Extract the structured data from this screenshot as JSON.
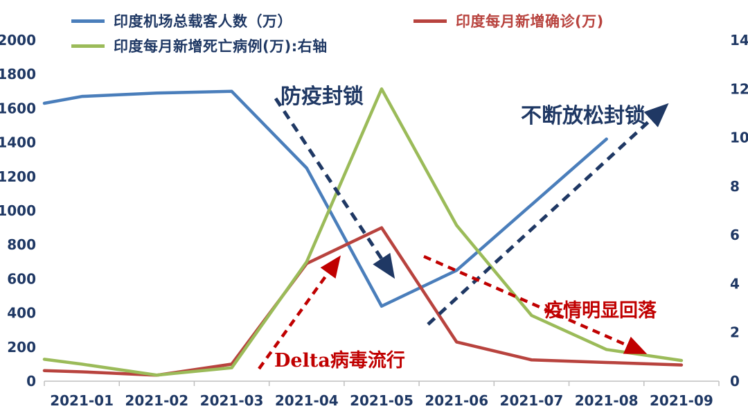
{
  "page": {
    "background": "#ffffff"
  },
  "colors": {
    "navy_text": "#1f3864",
    "blue_line": "#4a7ebb",
    "red_line": "#b8433e",
    "green_line": "#9bbb59",
    "annotation_red": "#c00000",
    "axis_line": "#bfbfbf"
  },
  "legend": {
    "items": [
      {
        "label": "印度机场总载客人数（万）",
        "color": "#4a7ebb",
        "text_color": "#1f3864"
      },
      {
        "label": "印度每月新增确诊(万)",
        "color": "#b8433e",
        "text_color": "#b8433e"
      },
      {
        "label": "印度每月新增死亡病例(万):右轴",
        "color": "#9bbb59",
        "text_color": "#1f3864"
      }
    ]
  },
  "chart_data": {
    "type": "line",
    "x": [
      "2021-01",
      "2021-02",
      "2021-03",
      "2021-04",
      "2021-05",
      "2021-06",
      "2021-07",
      "2021-08",
      "2021-09"
    ],
    "left_axis": {
      "min": 0,
      "max": 2000,
      "step": 200
    },
    "right_axis": {
      "min": 0,
      "max": 14,
      "step": 2
    },
    "grid": false,
    "legend_position": "top",
    "series": [
      {
        "name": "印度机场总载客人数（万）",
        "axis": "left",
        "color": "#4a7ebb",
        "edge_start": 1630,
        "values": [
          1670,
          1690,
          1700,
          1250,
          440,
          650,
          1035,
          1420,
          null
        ]
      },
      {
        "name": "印度每月新增确诊(万)",
        "axis": "left",
        "color": "#b8433e",
        "edge_start": 62,
        "values": [
          55,
          35,
          100,
          690,
          900,
          230,
          125,
          110,
          95
        ]
      },
      {
        "name": "印度每月新增死亡病例(万):右轴",
        "axis": "right",
        "color": "#9bbb59",
        "edge_start": 0.9,
        "values": [
          0.7,
          0.25,
          0.55,
          4.9,
          12.0,
          6.4,
          2.7,
          1.3,
          0.85
        ]
      }
    ],
    "annotations": [
      {
        "text": "防疫封锁",
        "color": "#1f3864",
        "arrow": "down-right"
      },
      {
        "text": "不断放松封锁",
        "color": "#1f3864",
        "arrow": "up-right"
      },
      {
        "text": "Delta病毒流行",
        "color": "#c00000",
        "arrow": "up-right"
      },
      {
        "text": "疫情明显回落",
        "color": "#c00000",
        "arrow": "down-right"
      }
    ]
  }
}
